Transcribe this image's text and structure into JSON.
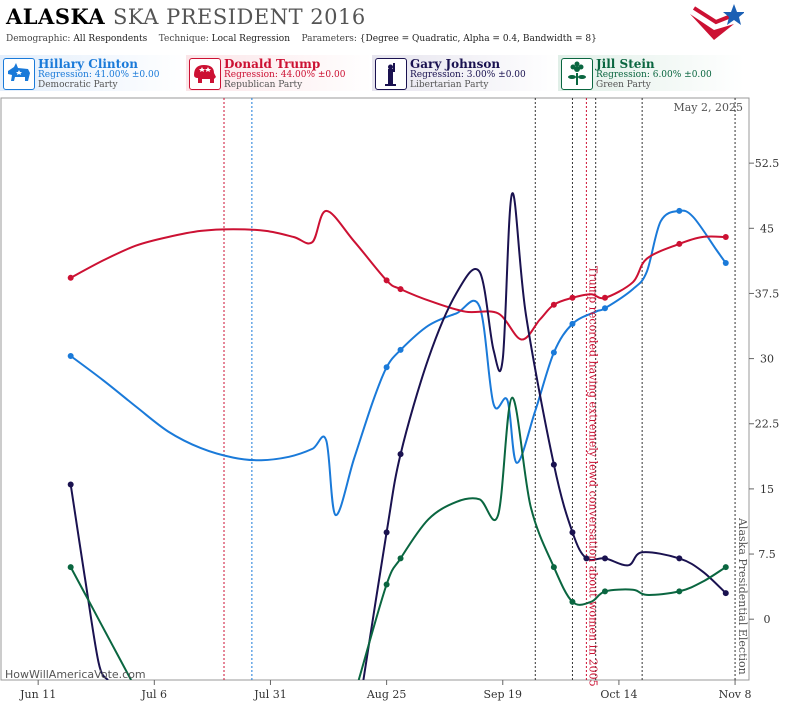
{
  "header": {
    "state": "ALASKA",
    "race": "SKA PRESIDENT 2016",
    "demographic_label": "Demographic:",
    "demographic_value": "All Respondents",
    "technique_label": "Technique:",
    "technique_value": "Local Regression",
    "parameters_label": "Parameters:",
    "parameters_value": "{Degree = Quadratic, Alpha = 0.4, Bandwidth = 8}"
  },
  "candidates": [
    {
      "name": "Hillary Clinton",
      "regression": "Regression: 41.00% ±0.00",
      "party": "Democratic Party",
      "color": "#1a7ad9",
      "icon": "donkey-icon"
    },
    {
      "name": "Donald Trump",
      "regression": "Regression: 44.00% ±0.00",
      "party": "Republican Party",
      "color": "#cc1133",
      "icon": "elephant-icon"
    },
    {
      "name": "Gary Johnson",
      "regression": "Regression: 3.00% ±0.00",
      "party": "Libertarian Party",
      "color": "#1a1250",
      "icon": "liberty-icon"
    },
    {
      "name": "Jill Stein",
      "regression": "Regression: 6.00% ±0.00",
      "party": "Green Party",
      "color": "#0a6640",
      "icon": "flower-icon"
    }
  ],
  "watermark": "HowWillAmericaVote.com",
  "chart_data": {
    "type": "line",
    "date_label": "May 2, 2025",
    "x_ticks": [
      {
        "label": "Jun 11",
        "day": "2016-06-11"
      },
      {
        "label": "Jul 6",
        "day": "2016-07-06"
      },
      {
        "label": "Jul 31",
        "day": "2016-07-31"
      },
      {
        "label": "Aug 25",
        "day": "2016-08-25"
      },
      {
        "label": "Sep 19",
        "day": "2016-09-19"
      },
      {
        "label": "Oct 14",
        "day": "2016-10-14"
      },
      {
        "label": "Nov 8",
        "day": "2016-11-08"
      }
    ],
    "y_ticks": [
      0,
      7.5,
      15,
      22.5,
      30,
      37.5,
      45,
      52.5
    ],
    "ylim": [
      -7,
      60
    ],
    "xlim": [
      "2016-06-03",
      "2016-11-11"
    ],
    "annotations": [
      {
        "text": "Trump recorded having extremely lewd conversation about women in 2005",
        "day": "2016-10-07",
        "color": "#cc1133"
      },
      {
        "text": "Alaska Presidential Election",
        "day": "2016-11-08",
        "color": "#555555"
      }
    ],
    "event_lines": [
      {
        "day": "2016-07-21",
        "color": "#cc1133"
      },
      {
        "day": "2016-07-27",
        "color": "#1a7ad9"
      },
      {
        "day": "2016-09-26",
        "color": "#333333"
      },
      {
        "day": "2016-10-04",
        "color": "#333333"
      },
      {
        "day": "2016-10-07",
        "color": "#cc1133"
      },
      {
        "day": "2016-10-09",
        "color": "#333333"
      },
      {
        "day": "2016-10-19",
        "color": "#333333"
      },
      {
        "day": "2016-11-08",
        "color": "#333333"
      }
    ],
    "series": [
      {
        "name": "Hillary Clinton",
        "color": "#1a7ad9",
        "line": [
          [
            "2016-06-18",
            30.3
          ],
          [
            "2016-06-25",
            27.5
          ],
          [
            "2016-07-02",
            24.5
          ],
          [
            "2016-07-09",
            21.6
          ],
          [
            "2016-07-16",
            19.7
          ],
          [
            "2016-07-23",
            18.6
          ],
          [
            "2016-07-29",
            18.3
          ],
          [
            "2016-08-04",
            18.7
          ],
          [
            "2016-08-09",
            19.6
          ],
          [
            "2016-08-12",
            20.6
          ],
          [
            "2016-08-14",
            12.0
          ],
          [
            "2016-08-18",
            18.5
          ],
          [
            "2016-08-22",
            25.0
          ],
          [
            "2016-08-25",
            29.0
          ],
          [
            "2016-08-28",
            31.0
          ],
          [
            "2016-09-03",
            33.8
          ],
          [
            "2016-09-09",
            35.2
          ],
          [
            "2016-09-14",
            36.0
          ],
          [
            "2016-09-17",
            24.8
          ],
          [
            "2016-09-20",
            25.2
          ],
          [
            "2016-09-22",
            18.0
          ],
          [
            "2016-09-26",
            24.0
          ],
          [
            "2016-09-30",
            30.7
          ],
          [
            "2016-10-04",
            34.0
          ],
          [
            "2016-10-09",
            35.4
          ],
          [
            "2016-10-11",
            35.8
          ],
          [
            "2016-10-17",
            38.0
          ],
          [
            "2016-10-20",
            40.0
          ],
          [
            "2016-10-23",
            45.8
          ],
          [
            "2016-10-27",
            47.0
          ],
          [
            "2016-10-30",
            46.3
          ],
          [
            "2016-11-04",
            42.5
          ],
          [
            "2016-11-06",
            41.0
          ]
        ],
        "points": [
          [
            "2016-06-18",
            30.3
          ],
          [
            "2016-08-25",
            29.0
          ],
          [
            "2016-08-28",
            31.0
          ],
          [
            "2016-09-30",
            30.7
          ],
          [
            "2016-10-04",
            34.0
          ],
          [
            "2016-10-11",
            35.8
          ],
          [
            "2016-10-27",
            47.0
          ],
          [
            "2016-11-06",
            41.0
          ]
        ]
      },
      {
        "name": "Donald Trump",
        "color": "#cc1133",
        "line": [
          [
            "2016-06-18",
            39.3
          ],
          [
            "2016-06-25",
            41.3
          ],
          [
            "2016-07-02",
            43.0
          ],
          [
            "2016-07-09",
            44.0
          ],
          [
            "2016-07-16",
            44.7
          ],
          [
            "2016-07-23",
            44.9
          ],
          [
            "2016-07-30",
            44.7
          ],
          [
            "2016-08-05",
            44.0
          ],
          [
            "2016-08-09",
            43.4
          ],
          [
            "2016-08-12",
            47.0
          ],
          [
            "2016-08-18",
            43.5
          ],
          [
            "2016-08-25",
            39.0
          ],
          [
            "2016-08-28",
            38.0
          ],
          [
            "2016-09-04",
            36.5
          ],
          [
            "2016-09-11",
            35.4
          ],
          [
            "2016-09-18",
            35.2
          ],
          [
            "2016-09-23",
            32.2
          ],
          [
            "2016-09-27",
            34.5
          ],
          [
            "2016-09-30",
            36.2
          ],
          [
            "2016-10-04",
            37.0
          ],
          [
            "2016-10-08",
            37.4
          ],
          [
            "2016-10-11",
            37.0
          ],
          [
            "2016-10-17",
            38.8
          ],
          [
            "2016-10-20",
            41.5
          ],
          [
            "2016-10-27",
            43.2
          ],
          [
            "2016-11-01",
            44.0
          ],
          [
            "2016-11-06",
            44.0
          ]
        ],
        "points": [
          [
            "2016-06-18",
            39.3
          ],
          [
            "2016-08-25",
            39.0
          ],
          [
            "2016-08-28",
            38.0
          ],
          [
            "2016-09-30",
            36.2
          ],
          [
            "2016-10-04",
            37.0
          ],
          [
            "2016-10-11",
            37.0
          ],
          [
            "2016-10-27",
            43.2
          ],
          [
            "2016-11-06",
            44.0
          ]
        ]
      },
      {
        "name": "Gary Johnson",
        "color": "#1a1250",
        "line": [
          [
            "2016-06-18",
            15.5
          ],
          [
            "2016-06-21",
            5.0
          ],
          [
            "2016-06-24",
            -5.0
          ],
          [
            "2016-06-26",
            -7.0
          ]
        ],
        "line2": [
          [
            "2016-08-20",
            -7.0
          ],
          [
            "2016-08-25",
            10.0
          ],
          [
            "2016-08-28",
            19.0
          ],
          [
            "2016-09-03",
            30.0
          ],
          [
            "2016-09-09",
            37.5
          ],
          [
            "2016-09-14",
            40.0
          ],
          [
            "2016-09-17",
            31.0
          ],
          [
            "2016-09-19",
            30.0
          ],
          [
            "2016-09-21",
            49.0
          ],
          [
            "2016-09-24",
            35.0
          ],
          [
            "2016-09-30",
            17.8
          ],
          [
            "2016-10-04",
            10.0
          ],
          [
            "2016-10-07",
            7.0
          ],
          [
            "2016-10-11",
            7.0
          ],
          [
            "2016-10-16",
            6.2
          ],
          [
            "2016-10-19",
            7.7
          ],
          [
            "2016-10-27",
            7.0
          ],
          [
            "2016-11-01",
            5.5
          ],
          [
            "2016-11-06",
            3.0
          ]
        ],
        "points": [
          [
            "2016-06-18",
            15.5
          ],
          [
            "2016-08-25",
            10.0
          ],
          [
            "2016-08-28",
            19.0
          ],
          [
            "2016-09-30",
            17.8
          ],
          [
            "2016-10-04",
            10.0
          ],
          [
            "2016-10-07",
            7.0
          ],
          [
            "2016-10-11",
            7.0
          ],
          [
            "2016-10-27",
            7.0
          ],
          [
            "2016-11-06",
            3.0
          ]
        ]
      },
      {
        "name": "Jill Stein",
        "color": "#0a6640",
        "line": [
          [
            "2016-06-18",
            6.0
          ],
          [
            "2016-06-22",
            2.0
          ],
          [
            "2016-06-27",
            -3.0
          ],
          [
            "2016-07-01",
            -7.0
          ]
        ],
        "line2": [
          [
            "2016-08-19",
            -7.0
          ],
          [
            "2016-08-25",
            4.0
          ],
          [
            "2016-08-28",
            7.0
          ],
          [
            "2016-09-03",
            11.5
          ],
          [
            "2016-09-09",
            13.5
          ],
          [
            "2016-09-14",
            13.8
          ],
          [
            "2016-09-18",
            12.0
          ],
          [
            "2016-09-21",
            25.5
          ],
          [
            "2016-09-25",
            13.0
          ],
          [
            "2016-09-30",
            6.0
          ],
          [
            "2016-10-04",
            2.0
          ],
          [
            "2016-10-08",
            2.0
          ],
          [
            "2016-10-11",
            3.2
          ],
          [
            "2016-10-17",
            3.4
          ],
          [
            "2016-10-20",
            2.8
          ],
          [
            "2016-10-27",
            3.2
          ],
          [
            "2016-11-01",
            4.3
          ],
          [
            "2016-11-06",
            6.0
          ]
        ],
        "points": [
          [
            "2016-06-18",
            6.0
          ],
          [
            "2016-08-25",
            4.0
          ],
          [
            "2016-08-28",
            7.0
          ],
          [
            "2016-09-30",
            6.0
          ],
          [
            "2016-10-04",
            2.0
          ],
          [
            "2016-10-11",
            3.2
          ],
          [
            "2016-10-27",
            3.2
          ],
          [
            "2016-11-06",
            6.0
          ]
        ]
      }
    ]
  }
}
